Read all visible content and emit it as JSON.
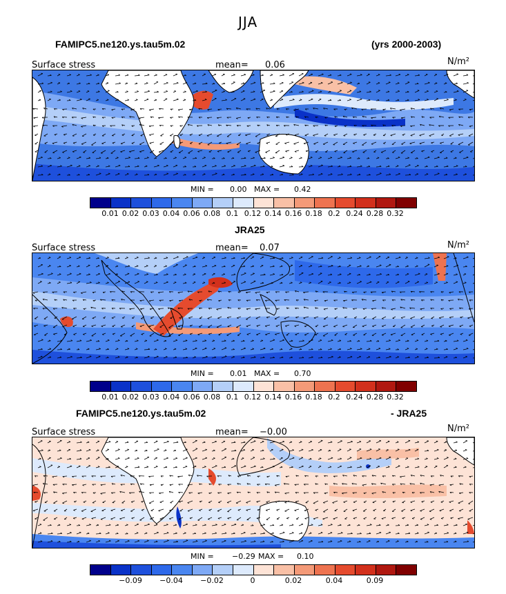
{
  "season": "JJA",
  "panel_colors": [
    "#00008b",
    "#0a32c8",
    "#1e50dc",
    "#2e69ea",
    "#4a86f0",
    "#7ea9f5",
    "#b4cff8",
    "#ddeafc",
    "#fde3d6",
    "#f9c0a6",
    "#f49a78",
    "#ee7350",
    "#e54b2e",
    "#d2301c",
    "#b01810",
    "#800000"
  ],
  "panels": [
    {
      "title_left": "FAMIPC5.ne120.ys.tau5m.02",
      "title_right": "(yrs 2000-2003)",
      "var_label": "Surface stress",
      "mean_label": "mean=",
      "mean_value": "0.06",
      "units": "N/m²",
      "min_label": "MIN =",
      "min_value": "0.00",
      "max_label": "MAX =",
      "max_value": "0.42",
      "cbar_ticks": [
        "0.01",
        "0.02",
        "0.03",
        "0.04",
        "0.06",
        "0.08",
        "0.1",
        "0.12",
        "0.14",
        "0.16",
        "0.18",
        "0.2",
        "0.24",
        "0.28",
        "0.32"
      ]
    },
    {
      "title_left": "JRA25",
      "title_right": "",
      "var_label": "Surface stress",
      "mean_label": "mean=",
      "mean_value": "0.07",
      "units": "N/m²",
      "min_label": "MIN =",
      "min_value": "0.01",
      "max_label": "MAX =",
      "max_value": "0.70",
      "cbar_ticks": [
        "0.01",
        "0.02",
        "0.03",
        "0.04",
        "0.06",
        "0.08",
        "0.1",
        "0.12",
        "0.14",
        "0.16",
        "0.18",
        "0.2",
        "0.24",
        "0.28",
        "0.32"
      ]
    },
    {
      "title_left": "FAMIPC5.ne120.ys.tau5m.02",
      "title_right": "- JRA25",
      "var_label": "Surface stress",
      "mean_label": "mean=",
      "mean_value": "−0.00",
      "units": "N/m²",
      "min_label": "MIN =",
      "min_value": "−0.29",
      "max_label": "MAX =",
      "max_value": "0.10",
      "cbar_ticks": [
        "−0.09",
        "−0.04",
        "−0.02",
        "0",
        "0.02",
        "0.04",
        "0.09"
      ]
    }
  ],
  "chart_data": [
    {
      "type": "heatmap",
      "title": "FAMIPC5.ne120.ys.tau5m.02 (yrs 2000-2003)",
      "variable": "Surface stress",
      "units": "N/m²",
      "mean": 0.06,
      "min": 0.0,
      "max": 0.42,
      "contour_levels": [
        0.01,
        0.02,
        0.03,
        0.04,
        0.06,
        0.08,
        0.1,
        0.12,
        0.14,
        0.16,
        0.18,
        0.2,
        0.24,
        0.28,
        0.32
      ]
    },
    {
      "type": "heatmap",
      "title": "JRA25",
      "variable": "Surface stress",
      "units": "N/m²",
      "mean": 0.07,
      "min": 0.01,
      "max": 0.7,
      "contour_levels": [
        0.01,
        0.02,
        0.03,
        0.04,
        0.06,
        0.08,
        0.1,
        0.12,
        0.14,
        0.16,
        0.18,
        0.2,
        0.24,
        0.28,
        0.32
      ]
    },
    {
      "type": "heatmap",
      "title": "FAMIPC5.ne120.ys.tau5m.02 - JRA25",
      "variable": "Surface stress",
      "units": "N/m²",
      "mean": -0.0,
      "min": -0.29,
      "max": 0.1,
      "contour_levels": [
        -0.09,
        -0.04,
        -0.02,
        0,
        0.02,
        0.04,
        0.09
      ]
    }
  ]
}
